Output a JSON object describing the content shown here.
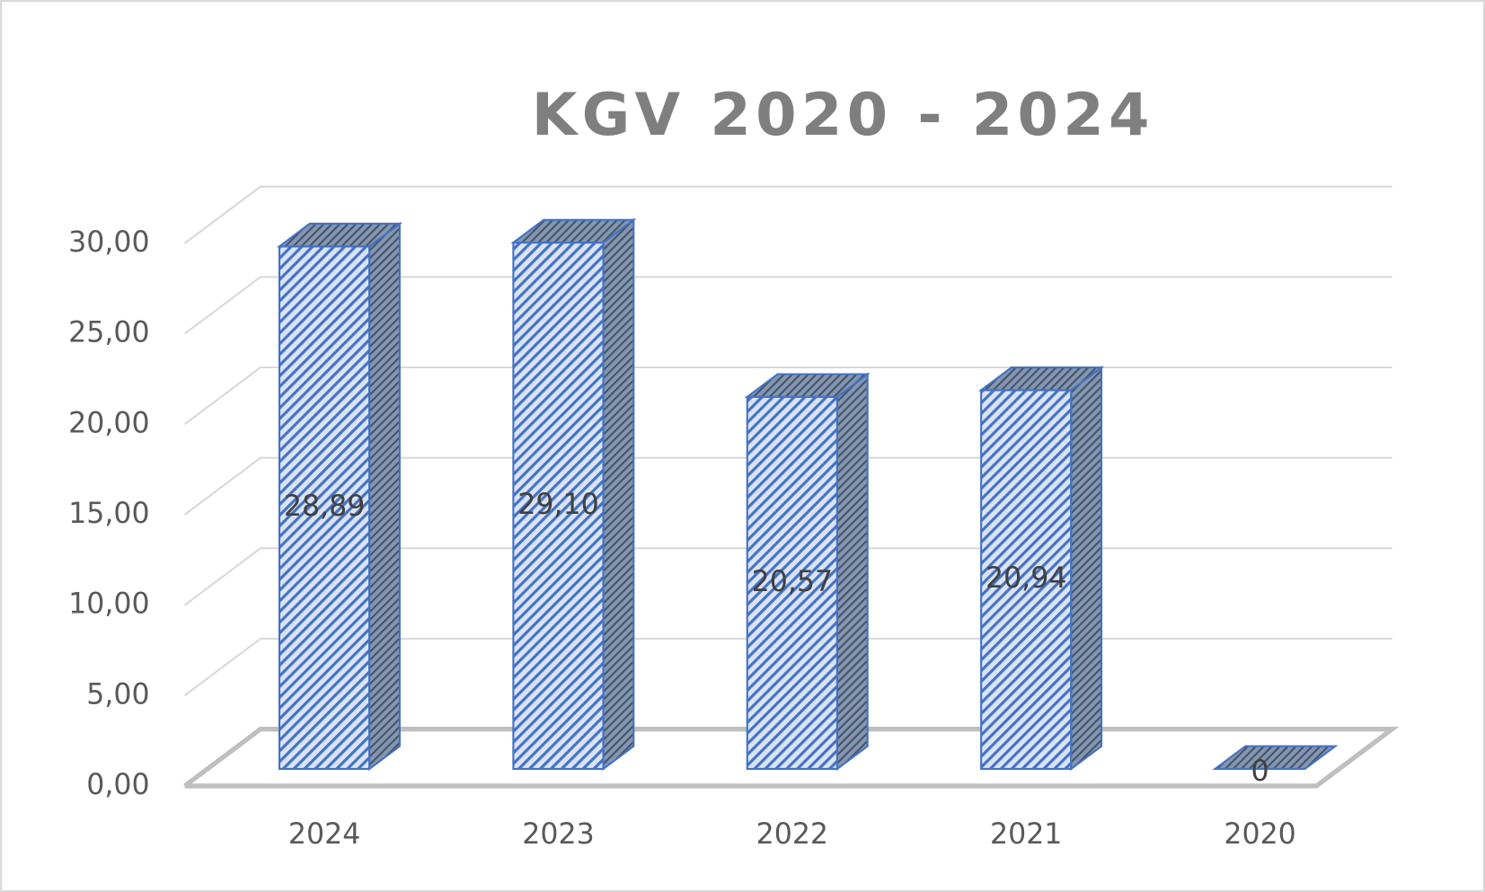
{
  "chart_data": {
    "type": "bar3d",
    "title": "KGV 2020 - 2024",
    "categories": [
      "2024",
      "2023",
      "2022",
      "2021",
      "2020"
    ],
    "values": [
      28.89,
      29.1,
      20.57,
      20.94,
      0
    ],
    "value_labels": [
      "28,89",
      "29,10",
      "20,57",
      "20,94",
      "0"
    ],
    "color": "#4472c4",
    "ylim": [
      0,
      30
    ],
    "yticks": [
      {
        "value": 0,
        "label": "0,00"
      },
      {
        "value": 5,
        "label": "5,00"
      },
      {
        "value": 10,
        "label": "10,00"
      },
      {
        "value": 15,
        "label": "15,00"
      },
      {
        "value": 20,
        "label": "20,00"
      },
      {
        "value": 25,
        "label": "25,00"
      },
      {
        "value": 30,
        "label": "30,00"
      }
    ],
    "grid": true
  }
}
